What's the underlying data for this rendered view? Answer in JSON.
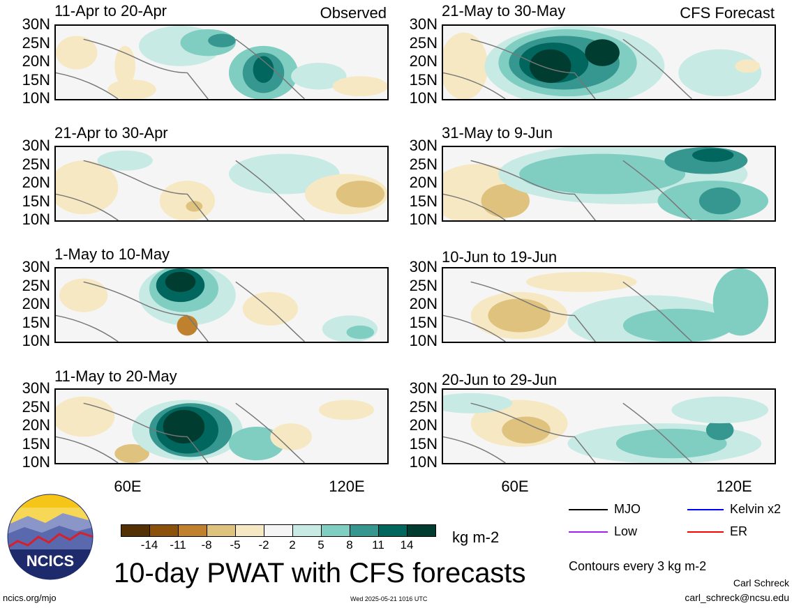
{
  "header": {
    "observed_label": "Observed",
    "forecast_label": "CFS Forecast"
  },
  "panels_left": [
    {
      "title": "11-Apr to 20-Apr"
    },
    {
      "title": "21-Apr to 30-Apr"
    },
    {
      "title": "1-May to 10-May"
    },
    {
      "title": "11-May to 20-May"
    }
  ],
  "panels_right": [
    {
      "title": "21-May to 30-May"
    },
    {
      "title": "31-May to 9-Jun"
    },
    {
      "title": "10-Jun to 19-Jun"
    },
    {
      "title": "20-Jun to 29-Jun"
    }
  ],
  "lat_labels": [
    "30N",
    "25N",
    "20N",
    "15N",
    "10N"
  ],
  "lon_labels": [
    "60E",
    "120E"
  ],
  "colorbar": {
    "ticks": [
      "-14",
      "-11",
      "-8",
      "-5",
      "-2",
      "2",
      "5",
      "8",
      "11",
      "14"
    ],
    "colors": [
      "#543005",
      "#8c510a",
      "#bf812d",
      "#dfc27d",
      "#f6e8c3",
      "#f5f5f5",
      "#c7eae5",
      "#80cdc1",
      "#35978f",
      "#01665e",
      "#003c30"
    ],
    "unit": "kg m-2"
  },
  "legend": [
    {
      "label": "MJO",
      "color": "#000000"
    },
    {
      "label": "Kelvin x2",
      "color": "#0000ff"
    },
    {
      "label": "Low",
      "color": "#a020f0"
    },
    {
      "label": "ER",
      "color": "#ff0000"
    }
  ],
  "contour_note": "Contours every 3 kg m-2",
  "main_title": "10-day PWAT with CFS forecasts",
  "footer": {
    "site": "ncics.org/mjo",
    "timestamp": "Wed 2025-05-21 1016 UTC",
    "author": "Carl Schreck",
    "email": "carl_schreck@ncsu.edu"
  },
  "logo": {
    "text": "NCICS"
  }
}
